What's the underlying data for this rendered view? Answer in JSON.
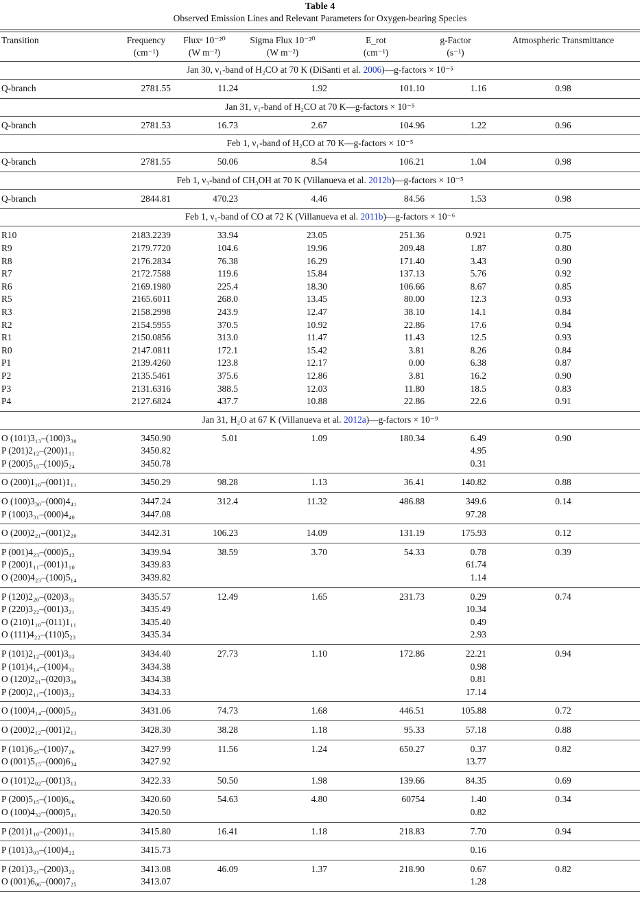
{
  "caption": {
    "table_number": "Table 4",
    "title": "Observed Emission Lines and Relevant Parameters for Oxygen-bearing Species"
  },
  "columns": [
    {
      "line1": "Transition",
      "line2": ""
    },
    {
      "line1": "Frequency",
      "line2": "(cm⁻¹)"
    },
    {
      "line1": "Fluxᵃ 10⁻²⁰",
      "line2": "(W m⁻²)"
    },
    {
      "line1": "Sigma Flux 10⁻²⁰",
      "line2": "(W m⁻²)"
    },
    {
      "line1": "E_rot",
      "line2": "(cm⁻¹)"
    },
    {
      "line1": "g-Factor",
      "line2": "(s⁻¹)"
    },
    {
      "line1": "Atmospheric Transmittance",
      "line2": ""
    }
  ],
  "colors": {
    "citation_link": "#1a33cc"
  },
  "sections": [
    {
      "before": "Jan 30, ν₁-band of H₂CO at 70 K (DiSanti et al. ",
      "link": "2006",
      "after": ")—g-factors × 10⁻⁵",
      "groups": [
        [
          [
            "Q-branch",
            "2781.55",
            "11.24",
            "1.92",
            "101.10",
            "1.16",
            "0.98"
          ]
        ]
      ]
    },
    {
      "before": "Jan 31, ν₁-band of H₂CO at 70 K—g-factors × 10⁻⁵",
      "link": "",
      "after": "",
      "groups": [
        [
          [
            "Q-branch",
            "2781.53",
            "16.73",
            "2.67",
            "104.96",
            "1.22",
            "0.96"
          ]
        ]
      ]
    },
    {
      "before": "Feb 1, ν₁-band of H₂CO at 70 K—g-factors × 10⁻⁵",
      "link": "",
      "after": "",
      "groups": [
        [
          [
            "Q-branch",
            "2781.55",
            "50.06",
            "8.54",
            "106.21",
            "1.04",
            "0.98"
          ]
        ]
      ]
    },
    {
      "before": "Feb 1, ν₃-band of CH₃OH at 70 K (Villanueva et al. ",
      "link": "2012b",
      "after": ")—g-factors × 10⁻⁵",
      "groups": [
        [
          [
            "Q-branch",
            "2844.81",
            "470.23",
            "4.46",
            "84.56",
            "1.53",
            "0.98"
          ]
        ]
      ]
    },
    {
      "before": "Feb 1, ν₁-band of CO at 72 K (Villanueva et al. ",
      "link": "2011b",
      "after": ")—g-factors × 10⁻⁶",
      "groups": [
        [
          [
            "R10",
            "2183.2239",
            "33.94",
            "23.05",
            "251.36",
            "0.921",
            "0.75"
          ],
          [
            "R9",
            "2179.7720",
            "104.6",
            "19.96",
            "209.48",
            "1.87",
            "0.80"
          ],
          [
            "R8",
            "2176.2834",
            "76.38",
            "16.29",
            "171.40",
            "3.43",
            "0.90"
          ],
          [
            "R7",
            "2172.7588",
            "119.6",
            "15.84",
            "137.13",
            "5.76",
            "0.92"
          ],
          [
            "R6",
            "2169.1980",
            "225.4",
            "18.30",
            "106.66",
            "8.67",
            "0.85"
          ],
          [
            "R5",
            "2165.6011",
            "268.0",
            "13.45",
            "80.00",
            "12.3",
            "0.93"
          ],
          [
            "R3",
            "2158.2998",
            "243.9",
            "12.47",
            "38.10",
            "14.1",
            "0.84"
          ],
          [
            "R2",
            "2154.5955",
            "370.5",
            "10.92",
            "22.86",
            "17.6",
            "0.94"
          ],
          [
            "R1",
            "2150.0856",
            "313.0",
            "11.47",
            "11.43",
            "12.5",
            "0.93"
          ],
          [
            "R0",
            "2147.0811",
            "172.1",
            "15.42",
            "3.81",
            "8.26",
            "0.84"
          ],
          [
            "P1",
            "2139.4260",
            "123.8",
            "12.17",
            "0.00",
            "6.38",
            "0.87"
          ],
          [
            "P2",
            "2135.5461",
            "375.6",
            "12.86",
            "3.81",
            "16.2",
            "0.90"
          ],
          [
            "P3",
            "2131.6316",
            "388.5",
            "12.03",
            "11.80",
            "18.5",
            "0.83"
          ],
          [
            "P4",
            "2127.6824",
            "437.7",
            "10.88",
            "22.86",
            "22.6",
            "0.91"
          ]
        ]
      ]
    },
    {
      "before": "Jan 31, H₂O at 67 K (Villanueva et al. ",
      "link": "2012a",
      "after": ")—g-factors × 10⁻⁹",
      "groups": [
        [
          [
            "O (101)3₁₃–(100)3₃₀",
            "3450.90",
            "5.01",
            "1.09",
            "180.34",
            "6.49",
            "0.90"
          ],
          [
            "P (201)2₁₂–(200)1₁₁",
            "3450.82",
            "",
            "",
            "",
            "4.95",
            ""
          ],
          [
            "P (200)5₁₅–(100)5₂₄",
            "3450.78",
            "",
            "",
            "",
            "0.31",
            ""
          ]
        ],
        [
          [
            "O (200)1₁₀–(001)1₁₁",
            "3450.29",
            "98.28",
            "1.13",
            "36.41",
            "140.82",
            "0.88"
          ]
        ],
        [
          [
            "O (100)3₃₀–(000)4₄₁",
            "3447.24",
            "312.4",
            "11.32",
            "486.88",
            "349.6",
            "0.14"
          ],
          [
            "P (100)3₃₁–(000)4₄₀",
            "3447.08",
            "",
            "",
            "",
            "97.28",
            ""
          ]
        ],
        [
          [
            "O (200)2₂₁–(001)2₂₀",
            "3442.31",
            "106.23",
            "14.09",
            "131.19",
            "175.93",
            "0.12"
          ]
        ],
        [
          [
            "P (001)4₂₃–(000)5₄₂",
            "3439.94",
            "38.59",
            "3.70",
            "54.33",
            "0.78",
            "0.39"
          ],
          [
            "P (200)1₁₁–(001)1₁₀",
            "3439.83",
            "",
            "",
            "",
            "61.74",
            ""
          ],
          [
            "O (200)4₂₃–(100)5₁₄",
            "3439.82",
            "",
            "",
            "",
            "1.14",
            ""
          ]
        ],
        [
          [
            "P (120)2₂₀–(020)3₃₁",
            "3435.57",
            "12.49",
            "1.65",
            "231.73",
            "0.29",
            "0.74"
          ],
          [
            "P (220)3₂₂–(001)3₂₁",
            "3435.49",
            "",
            "",
            "",
            "10.34",
            ""
          ],
          [
            "O (210)1₁₀–(011)1₁₁",
            "3435.40",
            "",
            "",
            "",
            "0.49",
            ""
          ],
          [
            "O (111)4₂₂–(110)5₂₃",
            "3435.34",
            "",
            "",
            "",
            "2.93",
            ""
          ]
        ],
        [
          [
            "P (101)2₁₂–(001)3₀₃",
            "3434.40",
            "27.73",
            "1.10",
            "172.86",
            "22.21",
            "0.94"
          ],
          [
            "P (101)4₁₄–(100)4₃₁",
            "3434.38",
            "",
            "",
            "",
            "0.98",
            ""
          ],
          [
            "O (120)2₂₁–(020)3₃₀",
            "3434.38",
            "",
            "",
            "",
            "0.81",
            ""
          ],
          [
            "P (200)2₁₁–(100)3₂₂",
            "3434.33",
            "",
            "",
            "",
            "17.14",
            ""
          ]
        ],
        [
          [
            "O (100)4₁₄–(000)5₂₃",
            "3431.06",
            "74.73",
            "1.68",
            "446.51",
            "105.88",
            "0.72"
          ]
        ],
        [
          [
            "O (200)2₁₂–(001)2₁₁",
            "3428.30",
            "38.28",
            "1.18",
            "95.33",
            "57.18",
            "0.88"
          ]
        ],
        [
          [
            "P (101)6₂₅–(100)7₂₆",
            "3427.99",
            "11.56",
            "1.24",
            "650.27",
            "0.37",
            "0.82"
          ],
          [
            "O (001)5₁₅–(000)6₃₄",
            "3427.92",
            "",
            "",
            "",
            "13.77",
            ""
          ]
        ],
        [
          [
            "O (101)2₀₂–(001)3₁₃",
            "3422.33",
            "50.50",
            "1.98",
            "139.66",
            "84.35",
            "0.69"
          ]
        ],
        [
          [
            "P (200)5₁₅–(100)6₀₆",
            "3420.60",
            "54.63",
            "4.80",
            "60754",
            "1.40",
            "0.34"
          ],
          [
            "O (100)4₃₂–(000)5₄₁",
            "3420.50",
            "",
            "",
            "",
            "0.82",
            ""
          ]
        ],
        [
          [
            "P (201)1₁₀–(200)1₁₁",
            "3415.80",
            "16.41",
            "1.18",
            "218.83",
            "7.70",
            "0.94"
          ]
        ],
        [
          [
            "P (101)3₀₃–(100)4₂₂",
            "3415.73",
            "",
            "",
            "",
            "0.16",
            ""
          ]
        ],
        [
          [
            "P (201)3₂₁–(200)3₂₂",
            "3413.08",
            "46.09",
            "1.37",
            "218.90",
            "0.67",
            "0.82"
          ],
          [
            "O (001)6₀₆–(000)7₂₅",
            "3413.07",
            "",
            "",
            "",
            "1.28",
            ""
          ]
        ]
      ]
    }
  ]
}
